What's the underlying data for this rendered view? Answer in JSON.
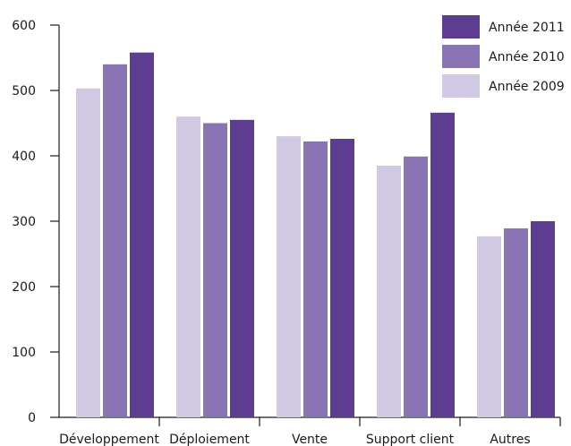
{
  "chart_data": {
    "type": "bar",
    "title": "",
    "xlabel": "",
    "ylabel": "",
    "ylim": [
      0,
      600
    ],
    "yticks": [
      0,
      100,
      200,
      300,
      400,
      500,
      600
    ],
    "grid": false,
    "legend_position": "top-right",
    "categories": [
      "Développement",
      "Déploiement",
      "Vente",
      "Support client",
      "Autres"
    ],
    "series": [
      {
        "name": "Année 2009",
        "color": "#d1c9e3",
        "values": [
          503,
          460,
          430,
          385,
          277
        ]
      },
      {
        "name": "Année 2010",
        "color": "#8a73b3",
        "values": [
          540,
          450,
          422,
          399,
          289
        ]
      },
      {
        "name": "Année 2011",
        "color": "#5c3d91",
        "values": [
          558,
          455,
          426,
          466,
          300
        ]
      }
    ],
    "legend_order": [
      "Année 2011",
      "Année 2010",
      "Année 2009"
    ]
  }
}
